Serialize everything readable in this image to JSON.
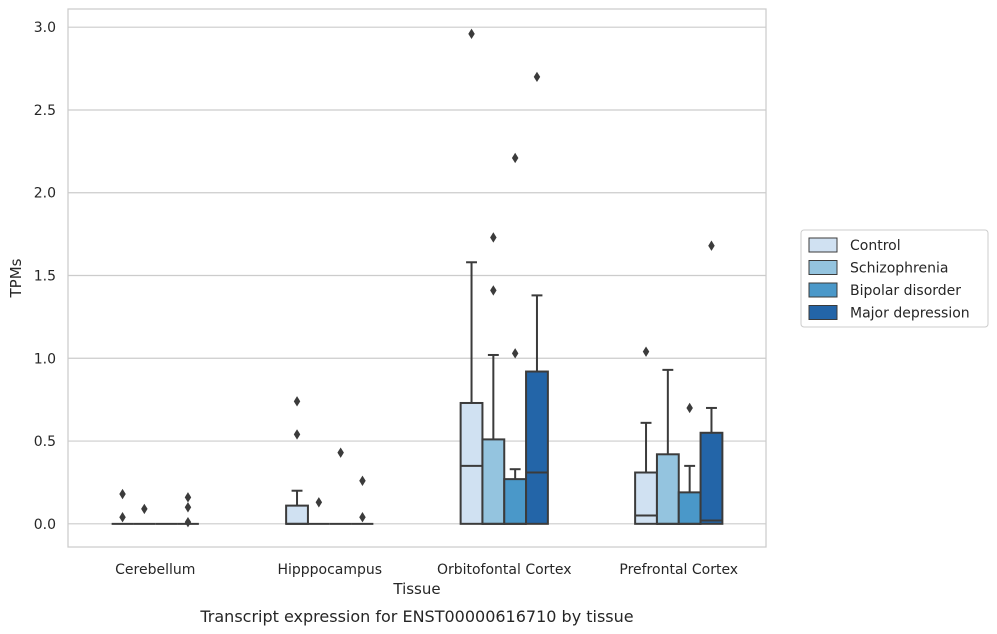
{
  "chart_data": {
    "type": "box",
    "caption": "Transcript expression for ENST00000616710 by tissue",
    "xlabel": "Tissue",
    "ylabel": "TPMs",
    "ylim": [
      -0.14,
      3.11
    ],
    "yticks": [
      0.0,
      0.5,
      1.0,
      1.5,
      2.0,
      2.5,
      3.0
    ],
    "ytick_labels": [
      "0.0",
      "0.5",
      "1.0",
      "1.5",
      "2.0",
      "2.5",
      "3.0"
    ],
    "grid": "horizontal",
    "legend_position": "right",
    "categories": [
      "Cerebellum",
      "Hipppocampus",
      "Orbitofontal Cortex",
      "Prefrontal Cortex"
    ],
    "series": [
      {
        "name": "Control",
        "color": "#d0e1f2",
        "boxes": [
          {
            "q1": 0.0,
            "median": 0.0,
            "q3": 0.0,
            "whislo": 0.0,
            "whishi": 0.0,
            "fliers": [
              0.18,
              0.04
            ]
          },
          {
            "q1": 0.0,
            "median": 0.0,
            "q3": 0.11,
            "whislo": 0.0,
            "whishi": 0.2,
            "fliers": [
              0.74,
              0.54
            ]
          },
          {
            "q1": 0.0,
            "median": 0.35,
            "q3": 0.73,
            "whislo": 0.0,
            "whishi": 1.58,
            "fliers": [
              2.96
            ]
          },
          {
            "q1": 0.0,
            "median": 0.05,
            "q3": 0.31,
            "whislo": 0.0,
            "whishi": 0.61,
            "fliers": [
              1.04
            ]
          }
        ]
      },
      {
        "name": "Schizophrenia",
        "color": "#94c4df",
        "boxes": [
          {
            "q1": 0.0,
            "median": 0.0,
            "q3": 0.0,
            "whislo": 0.0,
            "whishi": 0.0,
            "fliers": [
              0.09
            ]
          },
          {
            "q1": 0.0,
            "median": 0.0,
            "q3": 0.0,
            "whislo": 0.0,
            "whishi": 0.0,
            "fliers": [
              0.13
            ]
          },
          {
            "q1": 0.0,
            "median": 0.0,
            "q3": 0.51,
            "whislo": 0.0,
            "whishi": 1.02,
            "fliers": [
              1.73,
              1.41
            ]
          },
          {
            "q1": 0.0,
            "median": 0.0,
            "q3": 0.42,
            "whislo": 0.0,
            "whishi": 0.93,
            "fliers": []
          }
        ]
      },
      {
        "name": "Bipolar disorder",
        "color": "#4a98c9",
        "boxes": [
          {
            "q1": 0.0,
            "median": 0.0,
            "q3": 0.0,
            "whislo": 0.0,
            "whishi": 0.0,
            "fliers": []
          },
          {
            "q1": 0.0,
            "median": 0.0,
            "q3": 0.0,
            "whislo": 0.0,
            "whishi": 0.0,
            "fliers": [
              0.43
            ]
          },
          {
            "q1": 0.0,
            "median": 0.0,
            "q3": 0.27,
            "whislo": 0.0,
            "whishi": 0.33,
            "fliers": [
              2.21,
              1.03
            ]
          },
          {
            "q1": 0.0,
            "median": 0.0,
            "q3": 0.19,
            "whislo": 0.0,
            "whishi": 0.35,
            "fliers": [
              0.7
            ]
          }
        ]
      },
      {
        "name": "Major depression",
        "color": "#2365a8",
        "boxes": [
          {
            "q1": 0.0,
            "median": 0.0,
            "q3": 0.0,
            "whislo": 0.0,
            "whishi": 0.0,
            "fliers": [
              0.16,
              0.1,
              0.01
            ]
          },
          {
            "q1": 0.0,
            "median": 0.0,
            "q3": 0.0,
            "whislo": 0.0,
            "whishi": 0.0,
            "fliers": [
              0.26,
              0.04
            ]
          },
          {
            "q1": 0.0,
            "median": 0.31,
            "q3": 0.92,
            "whislo": 0.0,
            "whishi": 1.38,
            "fliers": [
              2.7
            ]
          },
          {
            "q1": 0.0,
            "median": 0.02,
            "q3": 0.55,
            "whislo": 0.0,
            "whishi": 0.7,
            "fliers": [
              1.68
            ]
          }
        ]
      }
    ]
  }
}
